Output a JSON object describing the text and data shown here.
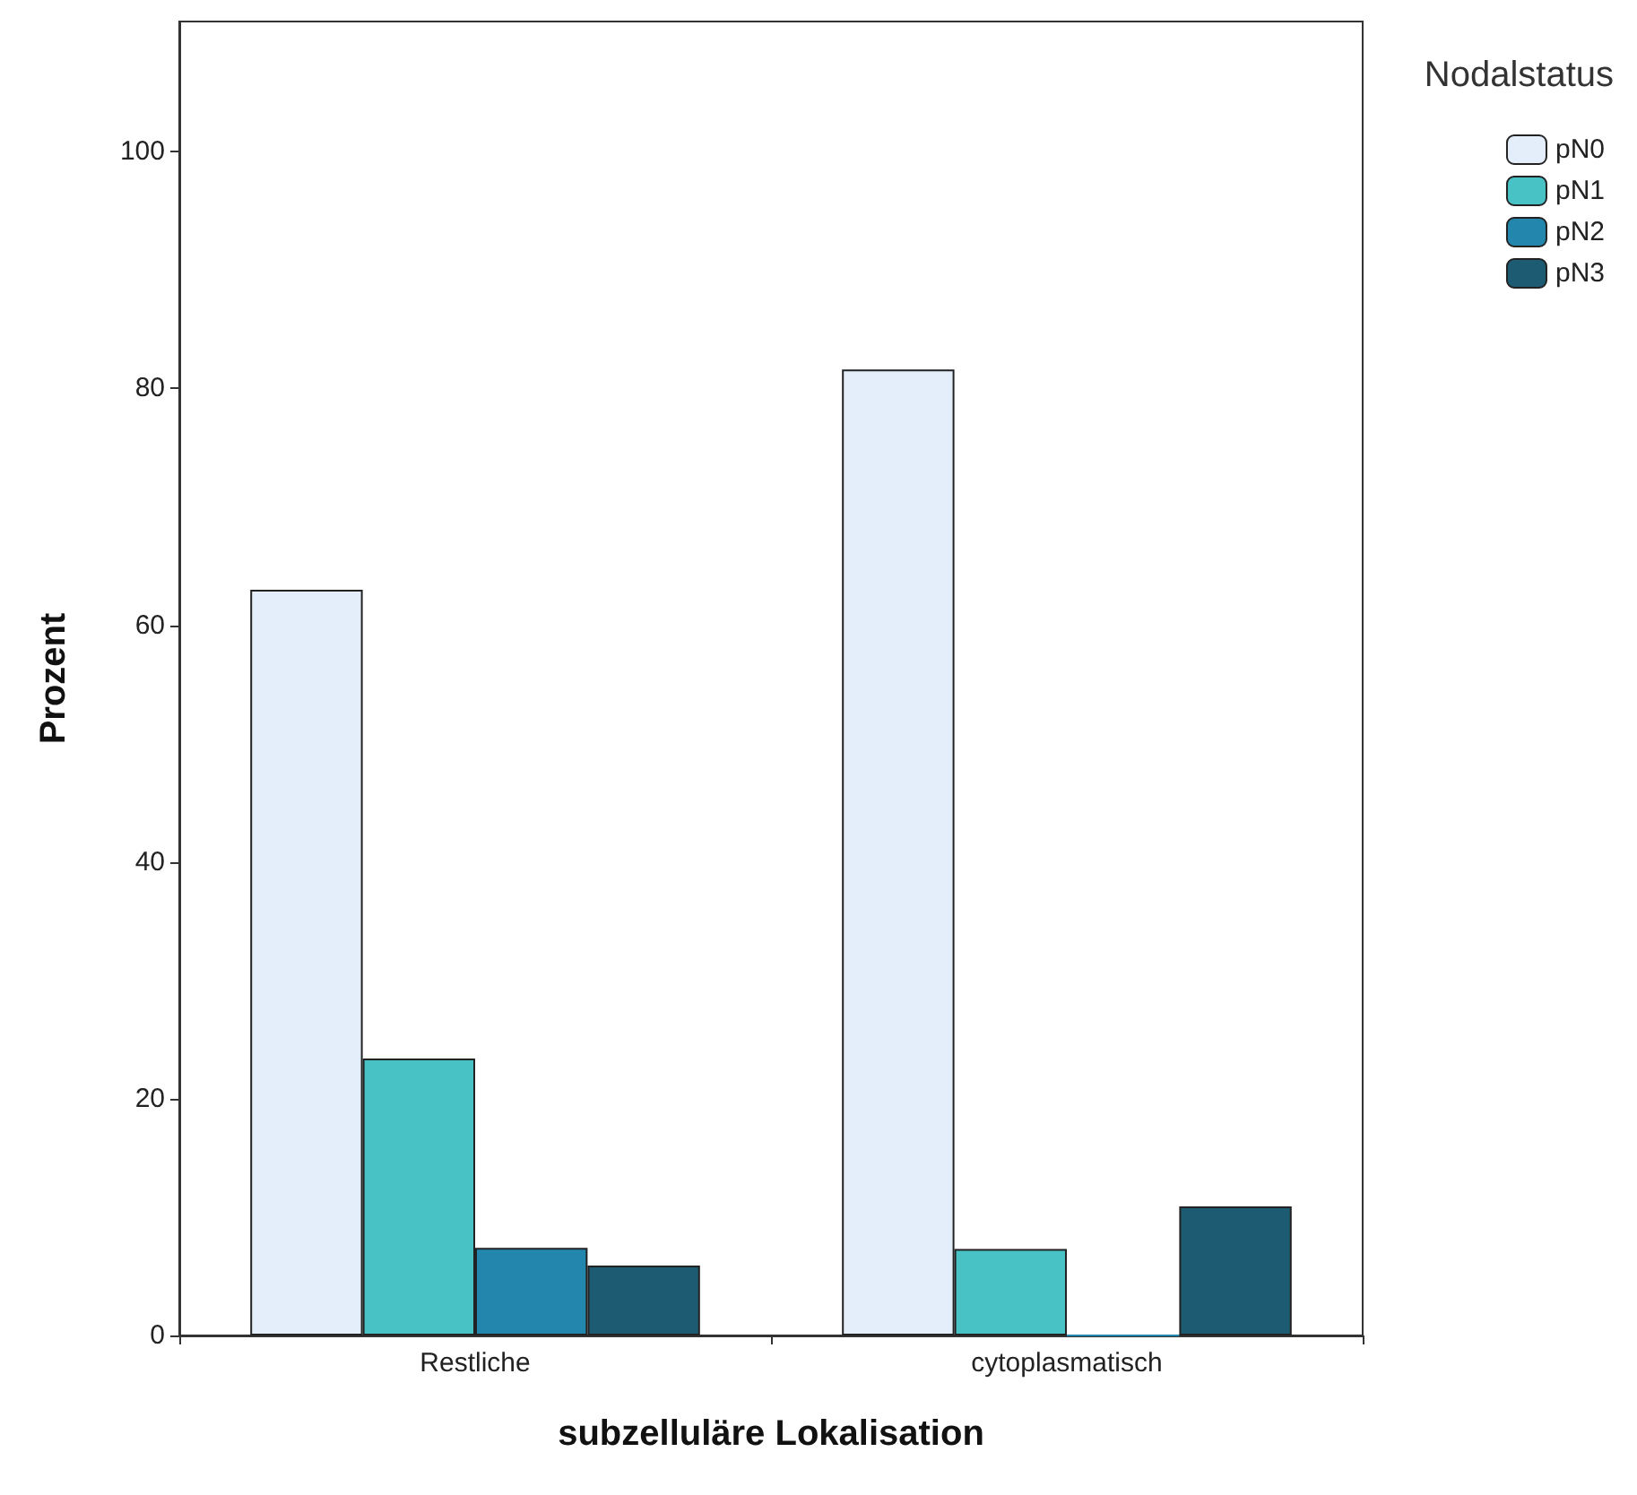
{
  "chart_data": {
    "type": "bar",
    "xlabel": "subzelluläre Lokalisation",
    "ylabel": "Prozent",
    "legend_title": "Nodalstatus",
    "categories": [
      "Restliche",
      "cytoplasmatisch"
    ],
    "series": [
      {
        "name": "pN0",
        "color": "#e3eefa",
        "values": [
          63,
          81.6
        ]
      },
      {
        "name": "pN1",
        "color": "#48c2c5",
        "values": [
          23.4,
          7.3
        ]
      },
      {
        "name": "pN2",
        "color": "#2387ad",
        "values": [
          7.4,
          0
        ]
      },
      {
        "name": "pN3",
        "color": "#1c5b72",
        "values": [
          5.9,
          10.9
        ]
      }
    ],
    "ylim": [
      0,
      111
    ],
    "yticks": [
      0,
      20,
      40,
      60,
      80,
      100
    ],
    "grid": false,
    "legend": "top right"
  }
}
